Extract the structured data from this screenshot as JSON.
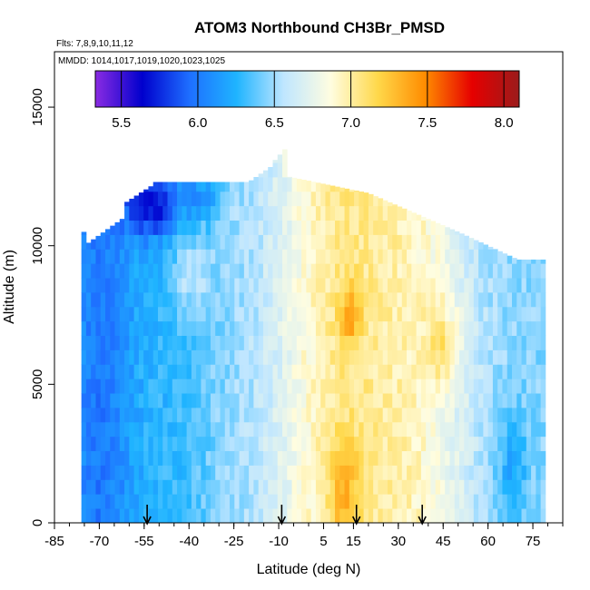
{
  "chart_data": {
    "type": "heatmap",
    "title": "ATOM3 Northbound CH3Br_PMSD",
    "flights_note": "Flts: 7,8,9,10,11,12",
    "dates_note": "MMDD: 1014,1017,1019,1020,1023,1025",
    "xlabel": "Latitude (deg N)",
    "ylabel": "Altitude (m)",
    "xlim": [
      -85,
      85
    ],
    "ylim": [
      0,
      17000
    ],
    "x_ticks": [
      -85,
      -70,
      -55,
      -40,
      -25,
      -10,
      5,
      15,
      30,
      45,
      60,
      75
    ],
    "y_ticks": [
      0,
      5000,
      10000,
      15000
    ],
    "colorbar": {
      "range": [
        5.33,
        8.1
      ],
      "ticks": [
        5.5,
        6.0,
        6.5,
        7.0,
        7.5,
        8.0
      ],
      "tick_labels": [
        "5.5",
        "6.0",
        "6.5",
        "7.0",
        "7.5",
        "8.0"
      ],
      "colors": [
        "#8a2be2",
        "#0000cd",
        "#1e6fff",
        "#1fb4ff",
        "#bfe6ff",
        "#fffde0",
        "#ffd84a",
        "#ff8c00",
        "#e60000",
        "#9b1b1b"
      ]
    },
    "profile_markers_lat": [
      -54,
      -9,
      16,
      38
    ],
    "grid": false,
    "field_note": "Curtain of CH3Br vs latitude and altitude; low values (blue) south of 45S and in the upper southern troposphere, high values (orange/red) near the equator and 10-20N."
  }
}
